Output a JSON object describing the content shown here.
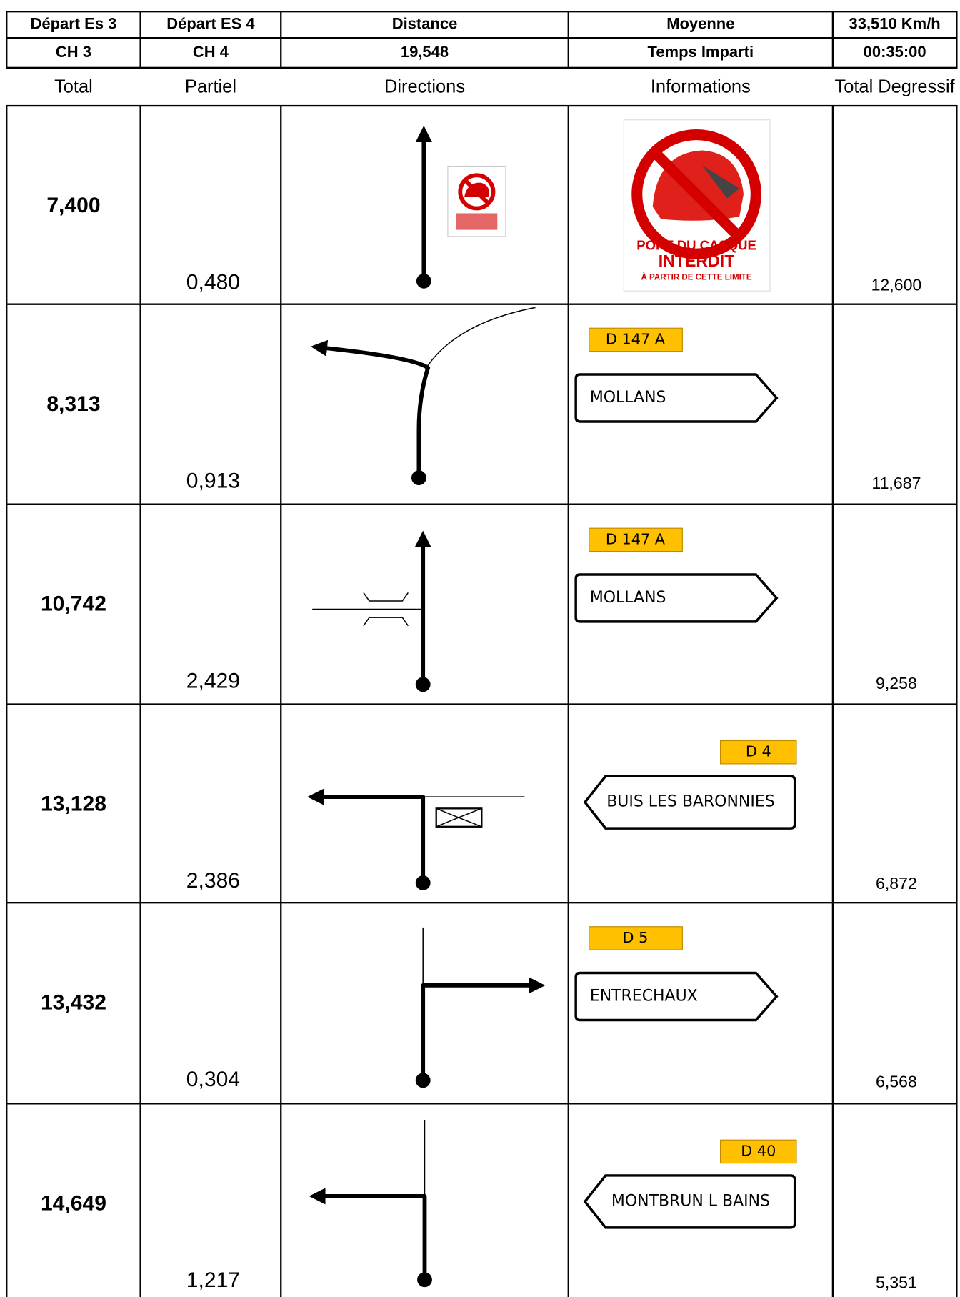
{
  "header": {
    "rows": [
      [
        "Départ Es 3",
        "Départ ES 4",
        "Distance",
        "Moyenne",
        "33,510 Km/h"
      ],
      [
        "CH 3",
        "CH 4",
        "19,548",
        "Temps Imparti",
        "00:35:00"
      ]
    ]
  },
  "columns": [
    "Total",
    "Partiel",
    "Directions",
    "Informations",
    "Total Degressif"
  ],
  "steps": [
    {
      "total": "7,400",
      "partial": "0,480",
      "remaining": "12,600",
      "sign": {
        "lines": [
          "PORT DU CASQUE",
          "INTERDIT",
          "À PARTIR DE CETTE LIMITE"
        ]
      }
    },
    {
      "total": "8,313",
      "partial": "0,913",
      "remaining": "11,687",
      "road": "D 147 A",
      "destination": "MOLLANS"
    },
    {
      "total": "10,742",
      "partial": "2,429",
      "remaining": "9,258",
      "road": "D 147 A",
      "destination": "MOLLANS"
    },
    {
      "total": "13,128",
      "partial": "2,386",
      "remaining": "6,872",
      "road": "D 4",
      "destination": "BUIS LES BARONNIES"
    },
    {
      "total": "13,432",
      "partial": "0,304",
      "remaining": "6,568",
      "road": "D 5",
      "destination": "ENTRECHAUX"
    },
    {
      "total": "14,649",
      "partial": "1,217",
      "remaining": "5,351",
      "road": "D 40",
      "destination": "MONTBRUN L BAINS"
    }
  ]
}
